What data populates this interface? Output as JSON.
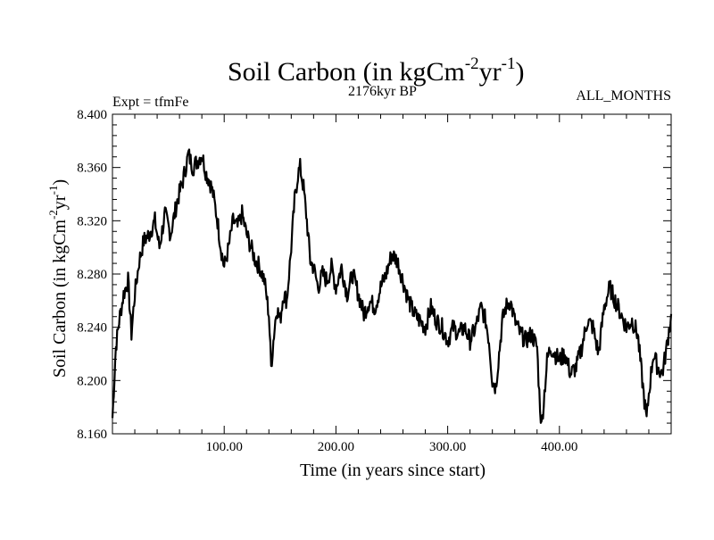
{
  "chart_data": {
    "type": "line",
    "title": "Soil Carbon (in kgCm",
    "title_unit_exp1": "-2",
    "title_unit_mid": "yr",
    "title_unit_exp2": "-1",
    "title_close": ")",
    "subtitle": "2176kyr BP",
    "left_label": "Expt = tfmFe",
    "right_label": "ALL_MONTHS",
    "xlabel": "Time (in years since start)",
    "ylabel": "Soil Carbon (in kgCm",
    "ylabel_exp1": "-2",
    "ylabel_mid": "yr",
    "ylabel_exp2": "-1",
    "ylabel_close": ")",
    "xlim": [
      0,
      500
    ],
    "ylim": [
      8.16,
      8.4
    ],
    "xticks": [
      100,
      200,
      300,
      400
    ],
    "xtick_labels": [
      "100.00",
      "200.00",
      "300.00",
      "400.00"
    ],
    "yticks": [
      8.16,
      8.2,
      8.24,
      8.28,
      8.32,
      8.36,
      8.4
    ],
    "ytick_labels": [
      "8.160",
      "8.200",
      "8.240",
      "8.280",
      "8.320",
      "8.360",
      "8.400"
    ],
    "series": [
      {
        "name": "Soil Carbon",
        "color": "#000000",
        "x": [
          0,
          3,
          6,
          10,
          14,
          17,
          20,
          24,
          28,
          33,
          38,
          42,
          47,
          52,
          58,
          63,
          68,
          72,
          76,
          80,
          84,
          87,
          90,
          94,
          97,
          100,
          104,
          108,
          112,
          116,
          120,
          124,
          128,
          132,
          136,
          140,
          142,
          144,
          147,
          150,
          153,
          156,
          160,
          163,
          166,
          168,
          171,
          174,
          177,
          180,
          184,
          188,
          192,
          196,
          200,
          205,
          210,
          215,
          220,
          225,
          230,
          235,
          240,
          245,
          250,
          255,
          260,
          265,
          270,
          275,
          280,
          285,
          290,
          295,
          300,
          305,
          310,
          315,
          320,
          325,
          330,
          334,
          337,
          340,
          343,
          346,
          349,
          352,
          356,
          360,
          365,
          370,
          375,
          380,
          382,
          384,
          386,
          389,
          392,
          396,
          400,
          405,
          410,
          415,
          420,
          425,
          430,
          435,
          440,
          445,
          450,
          455,
          460,
          465,
          470,
          473,
          476,
          478,
          480,
          484,
          488,
          492,
          496,
          500
        ],
        "values": [
          8.172,
          8.225,
          8.245,
          8.265,
          8.275,
          8.235,
          8.265,
          8.29,
          8.305,
          8.31,
          8.32,
          8.3,
          8.325,
          8.31,
          8.335,
          8.35,
          8.37,
          8.36,
          8.365,
          8.37,
          8.355,
          8.35,
          8.34,
          8.32,
          8.3,
          8.285,
          8.3,
          8.32,
          8.315,
          8.325,
          8.31,
          8.3,
          8.29,
          8.285,
          8.275,
          8.25,
          8.21,
          8.23,
          8.255,
          8.245,
          8.265,
          8.26,
          8.3,
          8.335,
          8.355,
          8.36,
          8.345,
          8.32,
          8.29,
          8.285,
          8.27,
          8.28,
          8.275,
          8.285,
          8.27,
          8.285,
          8.265,
          8.28,
          8.265,
          8.25,
          8.26,
          8.255,
          8.27,
          8.28,
          8.295,
          8.29,
          8.275,
          8.26,
          8.25,
          8.245,
          8.24,
          8.255,
          8.245,
          8.24,
          8.23,
          8.24,
          8.235,
          8.24,
          8.23,
          8.24,
          8.255,
          8.245,
          8.23,
          8.2,
          8.195,
          8.22,
          8.245,
          8.255,
          8.26,
          8.245,
          8.235,
          8.23,
          8.235,
          8.225,
          8.19,
          8.165,
          8.185,
          8.215,
          8.225,
          8.22,
          8.215,
          8.22,
          8.205,
          8.21,
          8.225,
          8.245,
          8.24,
          8.22,
          8.255,
          8.27,
          8.26,
          8.25,
          8.24,
          8.245,
          8.235,
          8.21,
          8.185,
          8.17,
          8.19,
          8.22,
          8.21,
          8.205,
          8.225,
          8.25
        ]
      }
    ],
    "grid": false
  }
}
